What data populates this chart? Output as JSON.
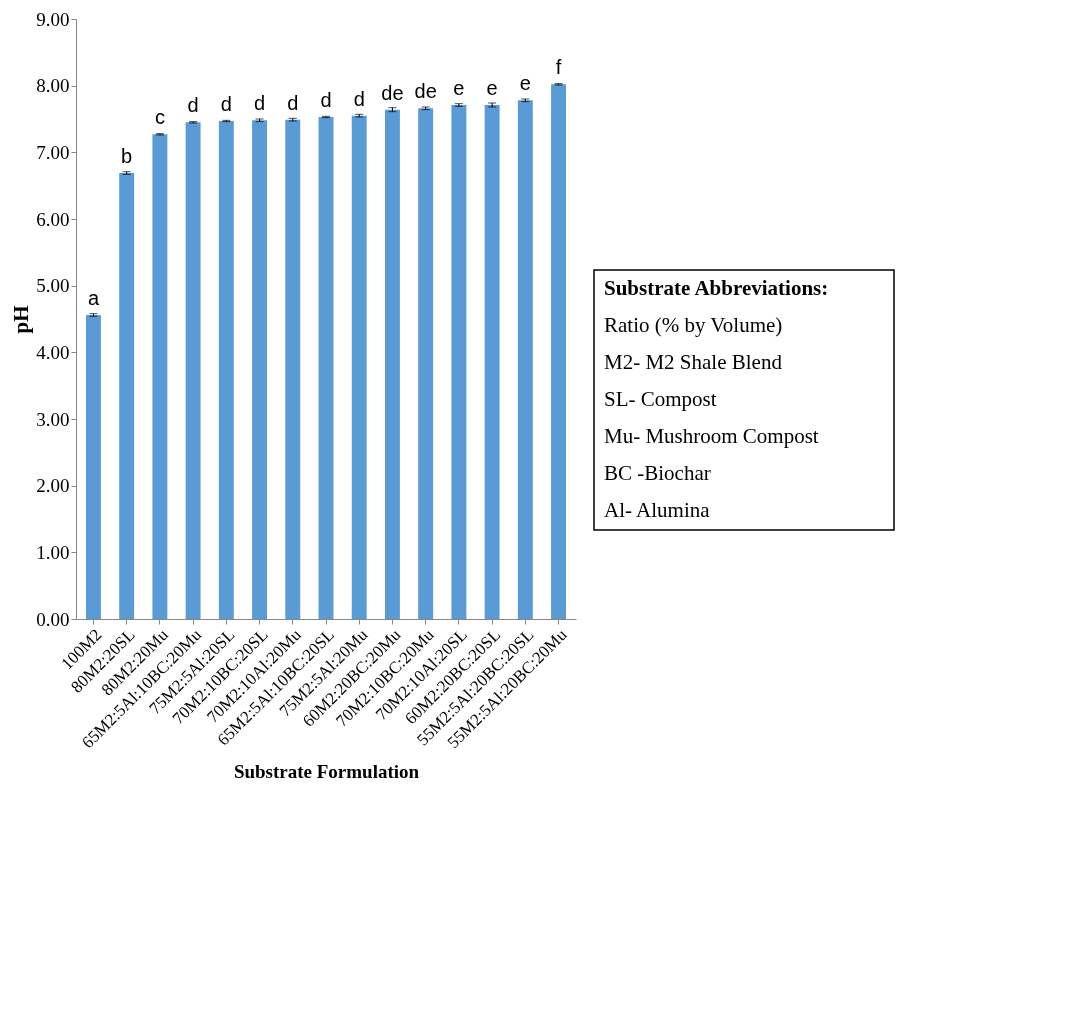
{
  "chart_data": {
    "type": "bar",
    "xlabel": "Substrate Formulation",
    "ylabel": "pH",
    "categories": [
      "100M2",
      "80M2:20SL",
      "80M2:20Mu",
      "65M2:5Al:10BC:20Mu",
      "75M2:5Al:20SL",
      "70M2:10BC:20SL",
      "70M2:10Al:20Mu",
      "65M2:5Al:10BC:20SL",
      "75M2:5Al:20Mu",
      "60M2:20BC:20Mu",
      "70M2:10BC:20Mu",
      "70M2:10Al:20SL",
      "60M2:20BC:20SL",
      "55M2:5Al:20BC:20SL",
      "55M2:5Al:20BC:20Mu"
    ],
    "values": [
      4.56,
      6.69,
      7.27,
      7.45,
      7.47,
      7.48,
      7.49,
      7.53,
      7.55,
      7.64,
      7.66,
      7.71,
      7.71,
      7.78,
      8.02
    ],
    "errors": [
      0.02,
      0.02,
      0.01,
      0.01,
      0.01,
      0.02,
      0.02,
      0.01,
      0.02,
      0.03,
      0.02,
      0.02,
      0.03,
      0.02,
      0.01
    ],
    "color": "#5b9bd5",
    "ylim": [
      0,
      9
    ],
    "yticks": [
      {
        "value": 0,
        "label": "0.00"
      },
      {
        "value": 1,
        "label": "1.00"
      },
      {
        "value": 2,
        "label": "2.00"
      },
      {
        "value": 3,
        "label": "3.00"
      },
      {
        "value": 4,
        "label": "4.00"
      },
      {
        "value": 5,
        "label": "5.00"
      },
      {
        "value": 6,
        "label": "6.00"
      },
      {
        "value": 7,
        "label": "7.00"
      },
      {
        "value": 8,
        "label": "8.00"
      },
      {
        "value": 9,
        "label": "9.00"
      }
    ],
    "grid": false,
    "annotations": [
      {
        "text": "a",
        "x": "100M2",
        "y": 4.56
      },
      {
        "text": "b",
        "x": "80M2:20SL",
        "y": 6.69
      },
      {
        "text": "c",
        "x": "80M2:20Mu",
        "y": 7.27
      },
      {
        "text": "d",
        "x": "65M2:5Al:10BC:20Mu",
        "y": 7.45
      },
      {
        "text": "d",
        "x": "75M2:5Al:20SL",
        "y": 7.47
      },
      {
        "text": "d",
        "x": "70M2:10BC:20SL",
        "y": 7.48
      },
      {
        "text": "d",
        "x": "70M2:10Al:20Mu",
        "y": 7.49
      },
      {
        "text": "d",
        "x": "65M2:5Al:10BC:20SL",
        "y": 7.53
      },
      {
        "text": "d",
        "x": "75M2:5Al:20Mu",
        "y": 7.55
      },
      {
        "text": "de",
        "x": "60M2:20BC:20Mu",
        "y": 7.64
      },
      {
        "text": "de",
        "x": "70M2:10BC:20Mu",
        "y": 7.66
      },
      {
        "text": "e",
        "x": "70M2:10Al:20SL",
        "y": 7.71
      },
      {
        "text": "e",
        "x": "60M2:20BC:20SL",
        "y": 7.71
      },
      {
        "text": "e",
        "x": "55M2:5Al:20BC:20SL",
        "y": 7.78
      },
      {
        "text": "f",
        "x": "55M2:5Al:20BC:20Mu",
        "y": 8.02
      },
      "Substrate Abbreviations:",
      "Ratio (% by Volume)",
      "M2- M2 Shale Blend",
      "SL- Compost",
      "Mu- Mushroom Compost",
      "BC -Biochar",
      "Al- Alumina"
    ]
  }
}
